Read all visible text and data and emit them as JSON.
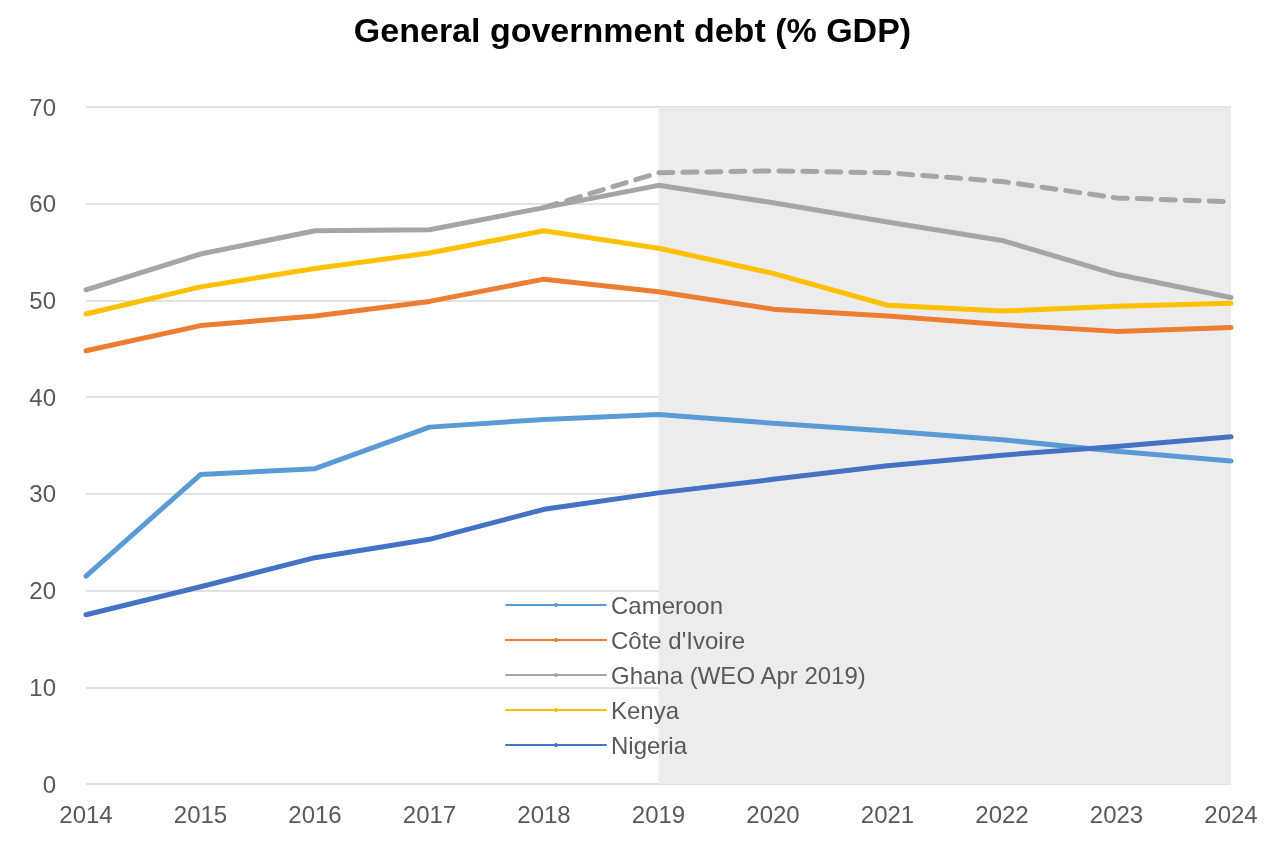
{
  "chart_data": {
    "type": "line",
    "title": "General government debt (% GDP)",
    "categories": [
      "2014",
      "2015",
      "2016",
      "2017",
      "2018",
      "2019",
      "2020",
      "2021",
      "2022",
      "2023",
      "2024"
    ],
    "series": [
      {
        "name": "Cameroon",
        "color": "#5b9bd5",
        "values": [
          21.5,
          32.0,
          32.6,
          36.9,
          37.7,
          38.2,
          37.3,
          36.5,
          35.6,
          34.4,
          33.4
        ]
      },
      {
        "name": "Côte d'Ivoire",
        "color": "#ed7d31",
        "values": [
          44.8,
          47.4,
          48.4,
          49.9,
          52.2,
          50.9,
          49.1,
          48.4,
          47.5,
          46.8,
          47.2
        ]
      },
      {
        "name": "Ghana (WEO Apr 2019)",
        "color": "#a5a5a5",
        "values": [
          51.1,
          54.8,
          57.2,
          57.3,
          59.6,
          61.9,
          60.1,
          58.1,
          56.2,
          52.7,
          50.3
        ]
      },
      {
        "color": "#a5a5a5",
        "line_style": "dashed",
        "values": [
          null,
          null,
          null,
          null,
          59.6,
          63.2,
          63.4,
          63.2,
          62.3,
          60.6,
          60.2
        ]
      },
      {
        "name": "Kenya",
        "color": "#ffc000",
        "values": [
          48.6,
          51.4,
          53.3,
          54.9,
          57.2,
          55.4,
          52.8,
          49.5,
          48.9,
          49.4,
          49.7
        ]
      },
      {
        "name": "Nigeria",
        "color": "#4472c4",
        "values": [
          17.5,
          20.4,
          23.4,
          25.3,
          28.4,
          30.1,
          31.5,
          32.9,
          34.0,
          34.9,
          35.9
        ]
      }
    ],
    "ylim": [
      0,
      70
    ],
    "yticks": [
      0,
      10,
      20,
      30,
      40,
      50,
      60,
      70
    ],
    "grid": "y",
    "legend": "bottom",
    "marker": "none",
    "line_style": "solid",
    "bands": [
      {
        "axis": "x",
        "from": "2019",
        "to": "2024",
        "color": "#ececec"
      }
    ]
  }
}
